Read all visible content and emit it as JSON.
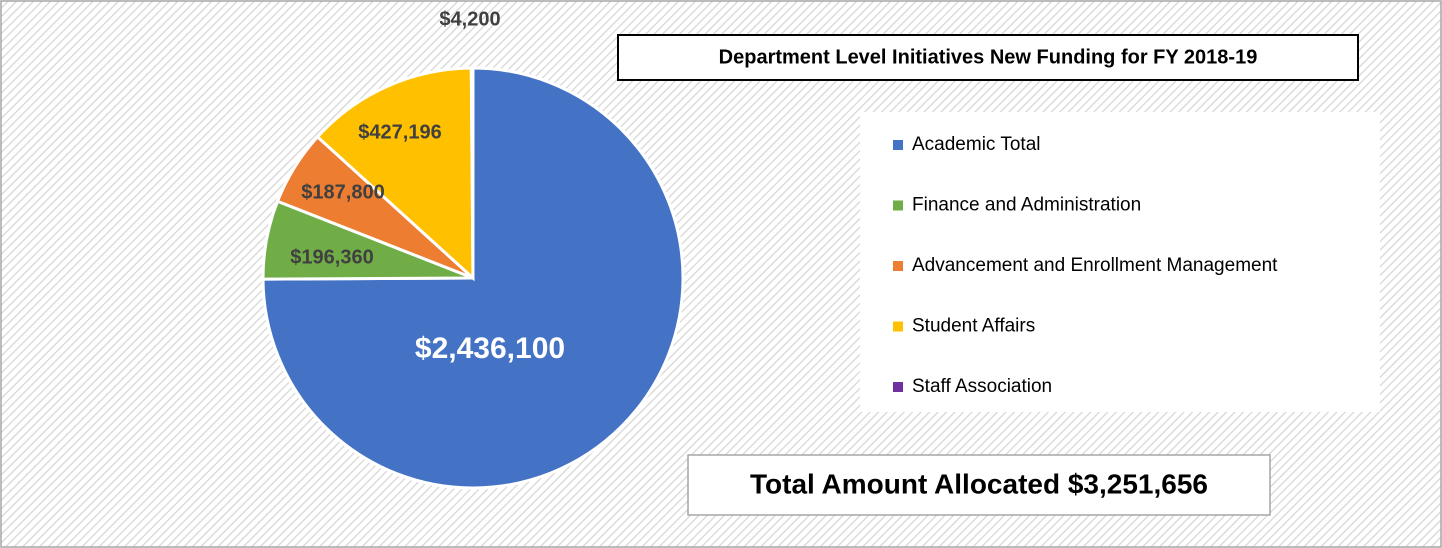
{
  "chart_data": {
    "type": "pie",
    "title": "Department Level Initiatives New Funding for FY 2018-19",
    "categories": [
      "Academic Total",
      "Finance and Administration",
      "Advancement and Enrollment Management",
      "Student Affairs",
      "Staff Association"
    ],
    "values": [
      2436100,
      196360,
      187800,
      427196,
      4200
    ],
    "value_labels": [
      "$2,436,100",
      "$196,360",
      "$187,800",
      "$427,196",
      "$4,200"
    ],
    "colors": [
      "#4472c4",
      "#70ad47",
      "#ed7d31",
      "#ffc000",
      "#7030a0"
    ],
    "legend": "right",
    "annotation": "Total Amount Allocated $3,251,656"
  }
}
